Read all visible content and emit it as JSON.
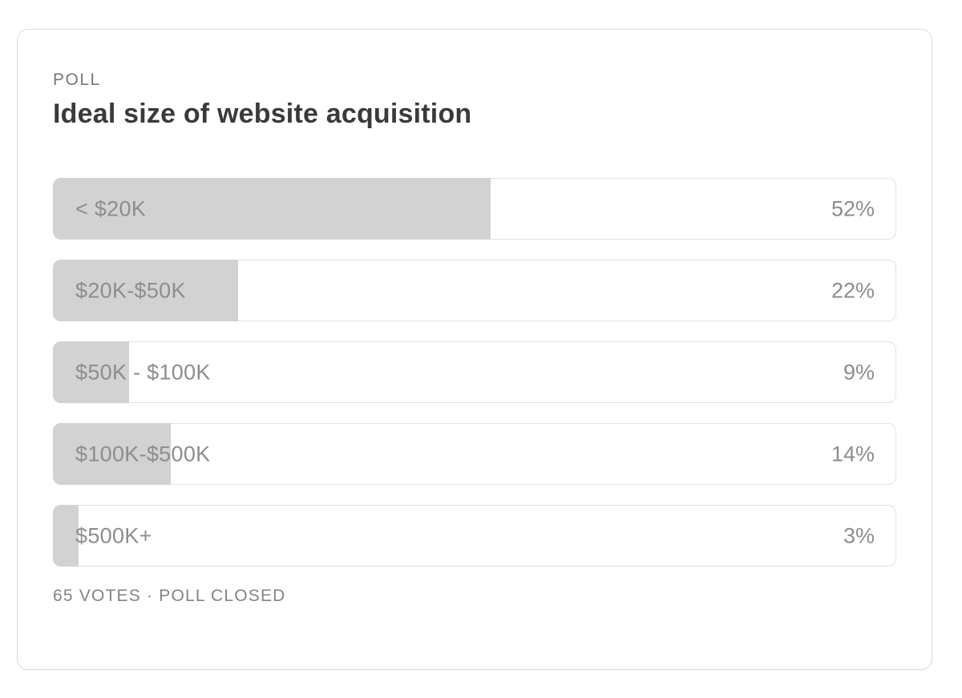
{
  "poll": {
    "kicker": "POLL",
    "title": "Ideal size of website acquisition",
    "footer": "65 VOTES · POLL CLOSED",
    "options": [
      {
        "label": "< $20K",
        "percent": 52,
        "percent_label": "52%"
      },
      {
        "label": "$20K-$50K",
        "percent": 22,
        "percent_label": "22%"
      },
      {
        "label": "$50K - $100K",
        "percent": 9,
        "percent_label": "9%"
      },
      {
        "label": "$100K-$500K",
        "percent": 14,
        "percent_label": "14%"
      },
      {
        "label": "$500K+",
        "percent": 3,
        "percent_label": "3%"
      }
    ],
    "colors": {
      "bar_fill": "#d2d2d2",
      "row_border": "#e2e2e2",
      "card_border": "#dcdcdc",
      "label_text": "#8d8d8d",
      "title_text": "#3a3a3a",
      "kicker_text": "#787878",
      "footer_text": "#848484"
    }
  },
  "chart_data": {
    "type": "bar",
    "orientation": "horizontal",
    "title": "Ideal size of website acquisition",
    "categories": [
      "< $20K",
      "$20K-$50K",
      "$50K - $100K",
      "$100K-$500K",
      "$500K+"
    ],
    "values": [
      52,
      22,
      9,
      14,
      3
    ],
    "unit": "%",
    "value_labels": [
      "52%",
      "22%",
      "9%",
      "14%",
      "3%"
    ],
    "total_votes": 65,
    "status": "POLL CLOSED",
    "xlim": [
      0,
      100
    ],
    "grid": false,
    "legend": false
  }
}
